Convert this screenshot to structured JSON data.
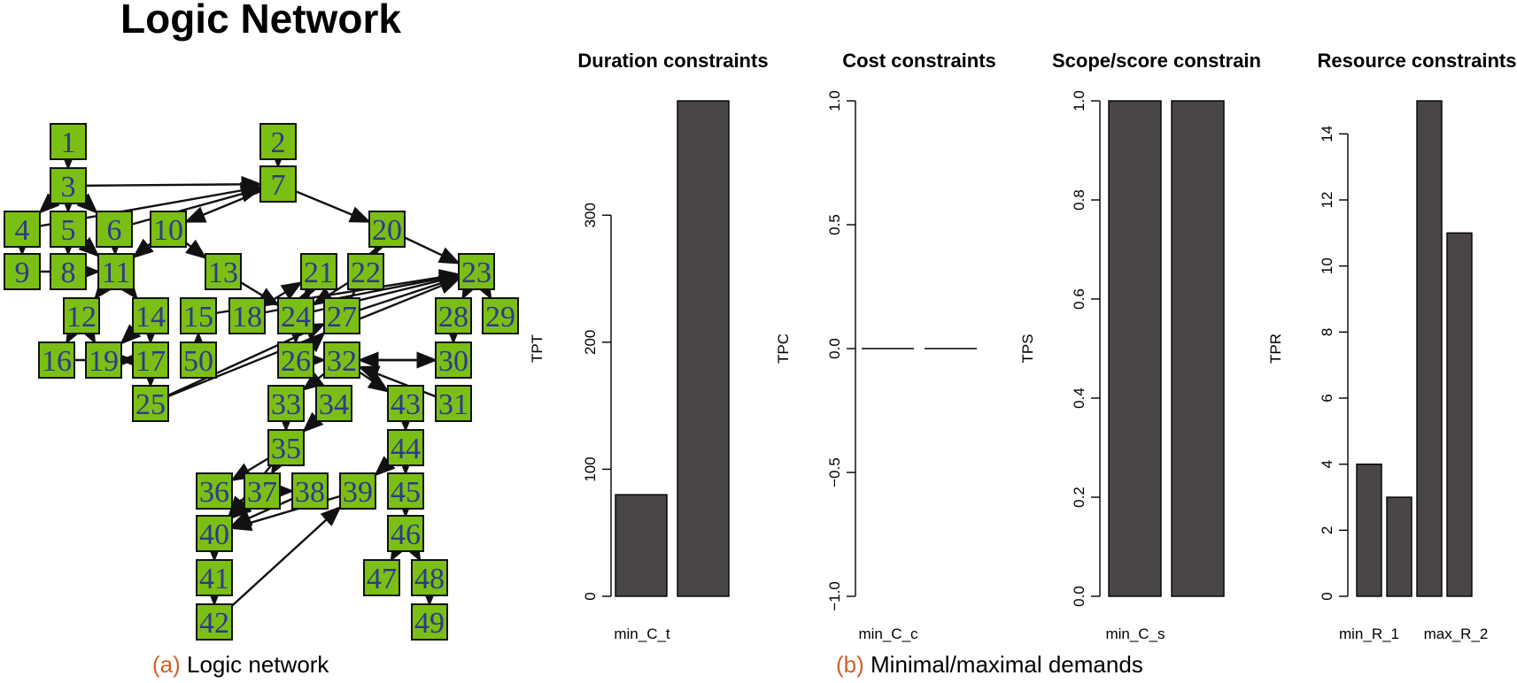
{
  "page_title": "Logic Network",
  "captions": {
    "a": {
      "tag": "(a)",
      "text": "Logic network"
    },
    "b": {
      "tag": "(b)",
      "text": "Minimal/maximal demands"
    }
  },
  "colors": {
    "node_fill": "#7bbf15",
    "node_label": "#2c3a8c",
    "bar_fill": "#4a4646",
    "caption_tag": "#d0622b"
  },
  "network": {
    "nodes": [
      "1",
      "2",
      "3",
      "4",
      "5",
      "6",
      "7",
      "8",
      "9",
      "10",
      "11",
      "12",
      "13",
      "14",
      "15",
      "16",
      "17",
      "18",
      "19",
      "20",
      "21",
      "22",
      "23",
      "24",
      "25",
      "26",
      "27",
      "28",
      "29",
      "30",
      "31",
      "32",
      "33",
      "34",
      "35",
      "36",
      "37",
      "38",
      "39",
      "40",
      "41",
      "42",
      "43",
      "44",
      "45",
      "46",
      "47",
      "48",
      "49",
      "50"
    ],
    "edges": [
      [
        "1",
        "3"
      ],
      [
        "2",
        "7"
      ],
      [
        "3",
        "4"
      ],
      [
        "3",
        "5"
      ],
      [
        "3",
        "6"
      ],
      [
        "4",
        "9"
      ],
      [
        "5",
        "8"
      ],
      [
        "6",
        "11"
      ],
      [
        "3",
        "7"
      ],
      [
        "4",
        "7"
      ],
      [
        "6",
        "7"
      ],
      [
        "7",
        "10"
      ],
      [
        "7",
        "20"
      ],
      [
        "10",
        "11"
      ],
      [
        "10",
        "13"
      ],
      [
        "5",
        "11"
      ],
      [
        "9",
        "11"
      ],
      [
        "8",
        "11"
      ],
      [
        "11",
        "12"
      ],
      [
        "11",
        "14"
      ],
      [
        "12",
        "16"
      ],
      [
        "12",
        "19"
      ],
      [
        "14",
        "17"
      ],
      [
        "15",
        "23"
      ],
      [
        "18",
        "23"
      ],
      [
        "24",
        "23"
      ],
      [
        "18",
        "21"
      ],
      [
        "24",
        "21"
      ],
      [
        "21",
        "24"
      ],
      [
        "22",
        "24"
      ],
      [
        "20",
        "23"
      ],
      [
        "20",
        "22"
      ],
      [
        "13",
        "24"
      ],
      [
        "27",
        "20"
      ],
      [
        "27",
        "23"
      ],
      [
        "26",
        "27"
      ],
      [
        "25",
        "23"
      ],
      [
        "25",
        "27"
      ],
      [
        "17",
        "25"
      ],
      [
        "14",
        "19"
      ],
      [
        "17",
        "19"
      ],
      [
        "26",
        "32"
      ],
      [
        "32",
        "30"
      ],
      [
        "30",
        "32"
      ],
      [
        "28",
        "30"
      ],
      [
        "23",
        "28"
      ],
      [
        "23",
        "29"
      ],
      [
        "31",
        "32"
      ],
      [
        "24",
        "26"
      ],
      [
        "32",
        "33"
      ],
      [
        "32",
        "43"
      ],
      [
        "33",
        "35"
      ],
      [
        "34",
        "35"
      ],
      [
        "35",
        "36"
      ],
      [
        "35",
        "37"
      ],
      [
        "35",
        "40"
      ],
      [
        "37",
        "38"
      ],
      [
        "37",
        "40"
      ],
      [
        "38",
        "40"
      ],
      [
        "39",
        "40"
      ],
      [
        "44",
        "39"
      ],
      [
        "43",
        "44"
      ],
      [
        "44",
        "45"
      ],
      [
        "45",
        "46"
      ],
      [
        "46",
        "47"
      ],
      [
        "46",
        "48"
      ],
      [
        "48",
        "49"
      ],
      [
        "40",
        "41"
      ],
      [
        "41",
        "42"
      ],
      [
        "42",
        "39"
      ],
      [
        "16",
        "17"
      ],
      [
        "50",
        "15"
      ]
    ]
  },
  "chart_data": [
    {
      "type": "bar",
      "title": "Duration constraints",
      "ylabel": "TPT",
      "categories": [
        "min_C_t",
        ""
      ],
      "values": [
        80,
        390
      ],
      "ylim": [
        0,
        390
      ],
      "yticks": [
        0,
        100,
        200,
        300
      ],
      "ytick_labels": [
        "0",
        "100",
        "200",
        "300"
      ],
      "xtick_labels": [
        "min_C_t",
        ""
      ]
    },
    {
      "type": "bar",
      "title": "Cost constraints",
      "ylabel": "TPC",
      "categories": [
        "min_C_c",
        ""
      ],
      "values": [
        0,
        0
      ],
      "ylim": [
        -1,
        1
      ],
      "yticks": [
        -1,
        -0.5,
        0,
        0.5,
        1
      ],
      "ytick_labels": [
        "−1.0",
        "−0.5",
        "0.0",
        "0.5",
        "1.0"
      ],
      "xtick_labels": [
        "min_C_c",
        ""
      ]
    },
    {
      "type": "bar",
      "title": "Scope/score constrain",
      "ylabel": "TPS",
      "categories": [
        "min_C_s",
        ""
      ],
      "values": [
        1,
        1
      ],
      "ylim": [
        0,
        1
      ],
      "yticks": [
        0,
        0.2,
        0.4,
        0.6,
        0.8,
        1
      ],
      "ytick_labels": [
        "0.0",
        "0.2",
        "0.4",
        "0.6",
        "0.8",
        "1.0"
      ],
      "xtick_labels": [
        "min_C_s",
        ""
      ]
    },
    {
      "type": "bar",
      "title": "Resource constraints",
      "ylabel": "TPR",
      "categories": [
        "min_R_1",
        "",
        "max_R_2",
        ""
      ],
      "values": [
        4,
        3,
        15,
        11
      ],
      "ylim": [
        0,
        15
      ],
      "yticks": [
        0,
        2,
        4,
        6,
        8,
        10,
        12,
        14
      ],
      "ytick_labels": [
        "0",
        "2",
        "4",
        "6",
        "8",
        "10",
        "12",
        "14"
      ],
      "xtick_labels": [
        "min_R_1",
        "",
        "max_R_2",
        ""
      ]
    }
  ]
}
